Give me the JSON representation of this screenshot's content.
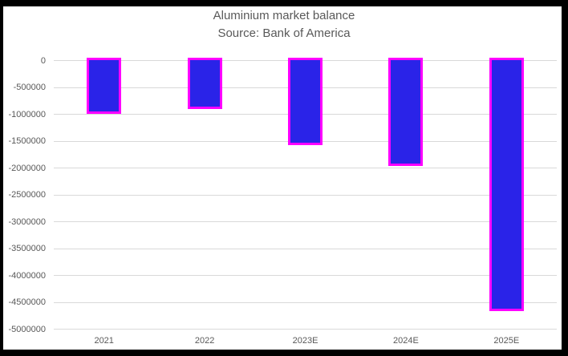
{
  "window": {
    "frame_color": "#000000",
    "background_color": "#ffffff"
  },
  "chart_data": {
    "type": "bar",
    "title": "Aluminium market balance",
    "subtitle": "Source: Bank of America",
    "categories": [
      "2021",
      "2022",
      "2023E",
      "2024E",
      "2025E"
    ],
    "values": [
      -950000,
      -865000,
      -1530000,
      -1920000,
      -4620000
    ],
    "xlabel": "",
    "ylabel": "",
    "ylim": [
      -5000000,
      0
    ],
    "ytick_interval": 500000,
    "yticks": [
      0,
      -500000,
      -1000000,
      -1500000,
      -2000000,
      -2500000,
      -3000000,
      -3500000,
      -4000000,
      -4500000,
      -5000000
    ],
    "yticklabels": [
      "0",
      "-500000",
      "-1000000",
      "-1500000",
      "-2000000",
      "-2500000",
      "-3000000",
      "-3500000",
      "-4000000",
      "-4500000",
      "-5000000"
    ],
    "grid": true,
    "legend": false,
    "colors": {
      "bar_fill": "#2a23e8",
      "bar_border": "#ff00ff",
      "gridline": "#d9d9d9",
      "text": "#595959"
    }
  }
}
